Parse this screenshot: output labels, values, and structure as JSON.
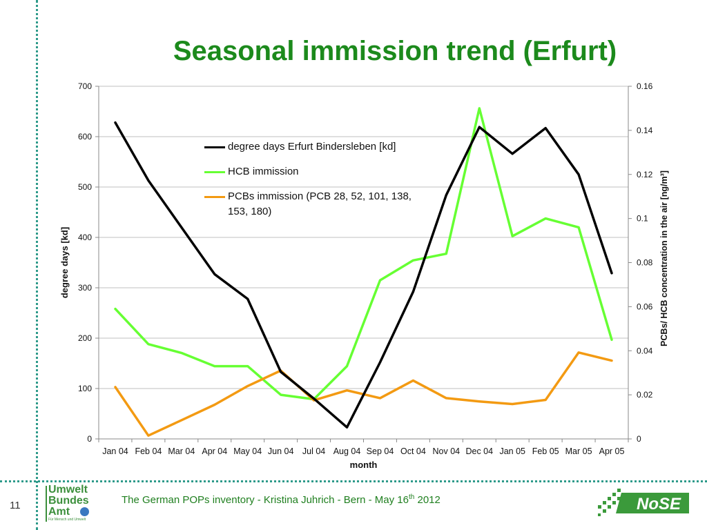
{
  "slide": {
    "title": "Seasonal immission trend (Erfurt)",
    "number": "11",
    "footer": {
      "text": "The German POPs inventory  -  Kristina Juhrich - Bern - May 16",
      "sup": "th",
      "year": " 2012"
    },
    "logo_uba": {
      "line1": "Umwelt",
      "line2": "Bundes",
      "line3": "Amt",
      "tagline": "Für Mensch und Umwelt"
    },
    "logo_nose": "NoSE"
  },
  "chart_data": {
    "type": "line",
    "categories": [
      "Jan 04",
      "Feb 04",
      "Mar 04",
      "Apr 04",
      "May 04",
      "Jun 04",
      "Jul 04",
      "Aug 04",
      "Sep 04",
      "Oct 04",
      "Nov 04",
      "Dec 04",
      "Jan 05",
      "Feb 05",
      "Mar 05",
      "Apr 05"
    ],
    "xlabel": "month",
    "ylabel": "degree days [kd]",
    "y2label": "PCBs/ HCB concentration in the air  [ng/m³]",
    "ylim": [
      0,
      700
    ],
    "y2lim": [
      0,
      0.16
    ],
    "yticks": [
      "0",
      "100",
      "200",
      "300",
      "400",
      "500",
      "600",
      "700"
    ],
    "y2ticks": [
      "0",
      "0.02",
      "0.04",
      "0.06",
      "0.08",
      "0.1",
      "0.12",
      "0.14",
      "0.16"
    ],
    "grid": true,
    "legend_position": "top-center",
    "series": [
      {
        "name": "degree days Erfurt Bindersleben [kd]",
        "axis": "left",
        "color": "#000000",
        "values": [
          628,
          513,
          420,
          327,
          278,
          133,
          80,
          23,
          152,
          292,
          484,
          619,
          566,
          617,
          525,
          329
        ]
      },
      {
        "name": "HCB immission",
        "axis": "right",
        "color": "#66ff33",
        "values": [
          0.059,
          0.043,
          0.039,
          0.033,
          0.033,
          0.02,
          0.018,
          0.033,
          0.072,
          0.081,
          0.084,
          0.15,
          0.092,
          0.1,
          0.096,
          0.045
        ]
      },
      {
        "name": "PCBs immission (PCB 28, 52, 101, 138, 153, 180)",
        "axis": "right",
        "color": "#f39a12",
        "values": [
          0.0235,
          0.0015,
          0.0085,
          0.0155,
          0.024,
          0.031,
          0.0175,
          0.022,
          0.0185,
          0.0265,
          0.0185,
          0.017,
          0.0158,
          0.0177,
          0.0392,
          0.0355
        ]
      }
    ]
  }
}
